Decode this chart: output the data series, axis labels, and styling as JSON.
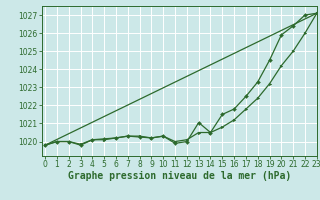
{
  "title": "Graphe pression niveau de la mer (hPa)",
  "background_color": "#cce8e8",
  "grid_color": "#ffffff",
  "line_color": "#2d6a2d",
  "x_values": [
    0,
    1,
    2,
    3,
    4,
    5,
    6,
    7,
    8,
    9,
    10,
    11,
    12,
    13,
    14,
    15,
    16,
    17,
    18,
    19,
    20,
    21,
    22,
    23
  ],
  "series_jagged": [
    1019.8,
    1020.0,
    1020.0,
    1019.8,
    1020.1,
    1020.15,
    1020.2,
    1020.3,
    1020.25,
    1020.2,
    1020.3,
    1019.9,
    1020.0,
    1021.05,
    1020.5,
    1021.5,
    1021.8,
    1022.5,
    1023.3,
    1024.5,
    1025.9,
    1026.4,
    1027.0,
    1027.1
  ],
  "series_smooth": [
    1019.8,
    1020.0,
    1020.0,
    1019.85,
    1020.1,
    1020.1,
    1020.2,
    1020.3,
    1020.3,
    1020.2,
    1020.3,
    1020.0,
    1020.1,
    1020.5,
    1020.5,
    1020.8,
    1021.2,
    1021.8,
    1022.4,
    1023.2,
    1024.2,
    1025.0,
    1026.0,
    1027.1
  ],
  "series_line_x": [
    0,
    23
  ],
  "series_line_y": [
    1019.8,
    1027.1
  ],
  "ylim": [
    1019.2,
    1027.5
  ],
  "xlim": [
    -0.3,
    23.0
  ],
  "yticks": [
    1020,
    1021,
    1022,
    1023,
    1024,
    1025,
    1026,
    1027
  ],
  "xticks": [
    0,
    1,
    2,
    3,
    4,
    5,
    6,
    7,
    8,
    9,
    10,
    11,
    12,
    13,
    14,
    15,
    16,
    17,
    18,
    19,
    20,
    21,
    22,
    23
  ],
  "tick_fontsize": 5.5,
  "label_fontsize": 7
}
